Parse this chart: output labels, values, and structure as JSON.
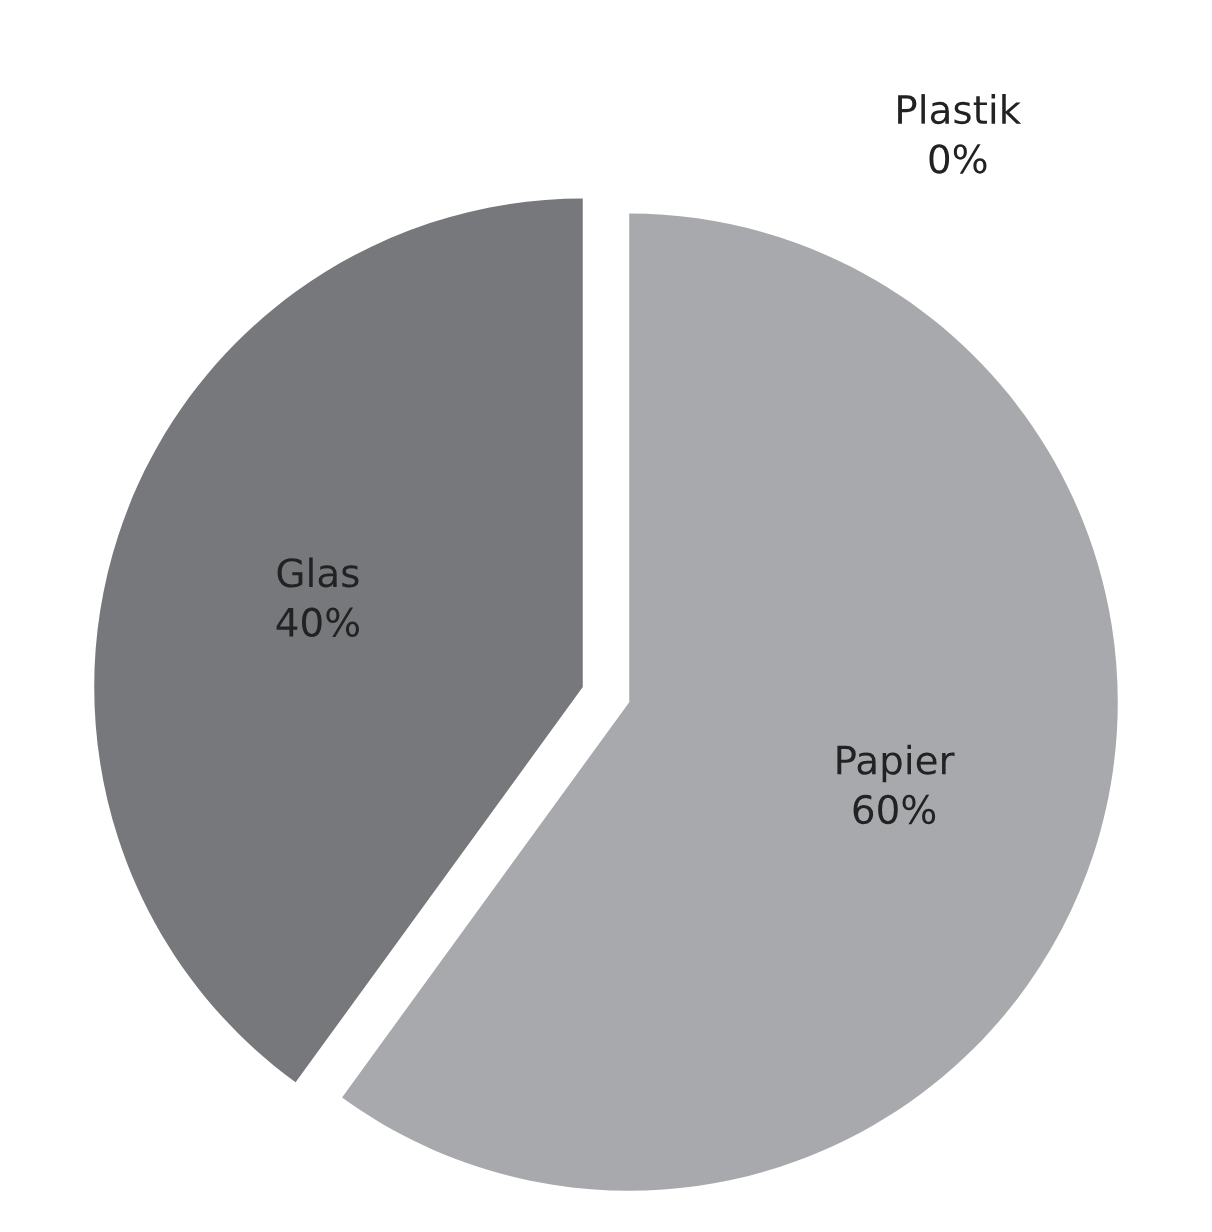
{
  "chart_data": {
    "type": "pie",
    "categories": [
      "Papier",
      "Glas",
      "Plastik"
    ],
    "values": [
      60,
      40,
      0
    ],
    "value_labels": [
      "60%",
      "40%",
      "0%"
    ],
    "colors": [
      "#a7a9ac",
      "#77787b",
      "#4d4e50"
    ],
    "legend": false
  }
}
